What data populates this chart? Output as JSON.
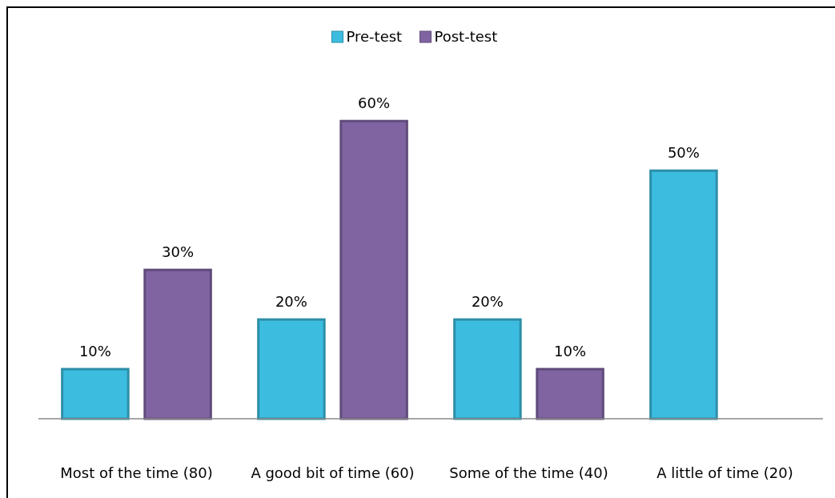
{
  "chart_data": {
    "type": "bar",
    "categories": [
      "Most of the time (80)",
      "A good bit of time (60)",
      "Some of the time (40)",
      "A little of time (20)"
    ],
    "series": [
      {
        "name": "Pre-test",
        "color": "#3cbde0",
        "values": [
          10,
          20,
          20,
          50
        ],
        "value_labels": [
          "10%",
          "20%",
          "20%",
          "50%"
        ]
      },
      {
        "name": "Post-test",
        "color": "#8064a2",
        "values": [
          30,
          60,
          10,
          null
        ],
        "value_labels": [
          "30%",
          "60%",
          "10%",
          null
        ]
      }
    ],
    "legend": "top",
    "grid": false
  }
}
